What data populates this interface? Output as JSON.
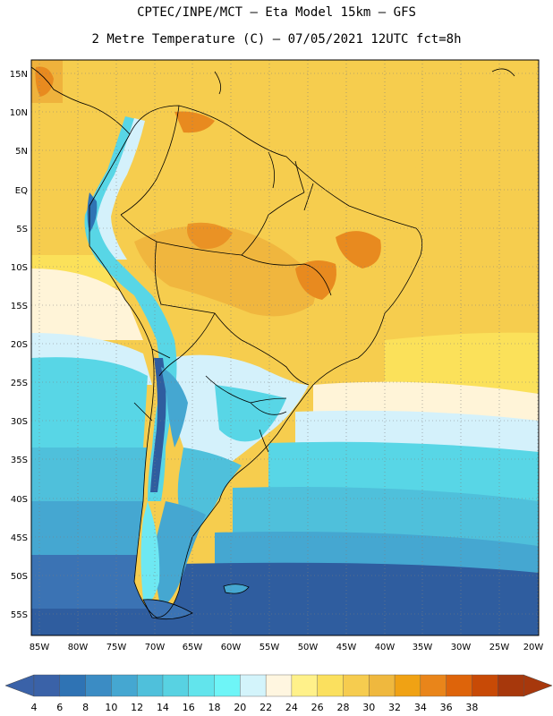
{
  "header": {
    "line1": "CPTEC/INPE/MCT –  Eta Model 15km – GFS",
    "line2": "2 Metre Temperature (C) – 07/05/2021 12UTC fct=8h"
  },
  "map": {
    "lat_labels": [
      "15N",
      "10N",
      "5N",
      "EQ",
      "5S",
      "10S",
      "15S",
      "20S",
      "25S",
      "30S",
      "35S",
      "40S",
      "45S",
      "50S",
      "55S"
    ],
    "lon_labels": [
      "85W",
      "80W",
      "75W",
      "70W",
      "65W",
      "60W",
      "55W",
      "50W",
      "45W",
      "40W",
      "35W",
      "30W",
      "25W",
      "20W"
    ]
  },
  "colorbar": {
    "labels": [
      "4",
      "6",
      "8",
      "10",
      "12",
      "14",
      "16",
      "18",
      "20",
      "22",
      "24",
      "26",
      "28",
      "30",
      "32",
      "34",
      "36",
      "38"
    ],
    "colors": [
      "#3a62a8",
      "#2f73b4",
      "#3b8cc4",
      "#45a7d1",
      "#4fc0db",
      "#58d2e2",
      "#62e4ec",
      "#6ef5f7",
      "#d3f4fb",
      "#fff6e0",
      "#fff18a",
      "#fbe05e",
      "#f6cc4f",
      "#efb83e",
      "#f0a214",
      "#e9851a",
      "#de640a",
      "#c84a06",
      "#a7380c"
    ],
    "low_color": "#3a62a8",
    "high_color": "#a7380c"
  },
  "colors": {
    "ocean_south": "#2f5d9f",
    "ocean_mid": "#3a7cc0",
    "cyan": "#58d6e6",
    "pale_blue": "#d4f1fb",
    "cream": "#fff4d8",
    "yellow": "#fbe15a",
    "gold": "#f6cd4e",
    "orange": "#efb23c",
    "hot": "#e88a1f"
  }
}
